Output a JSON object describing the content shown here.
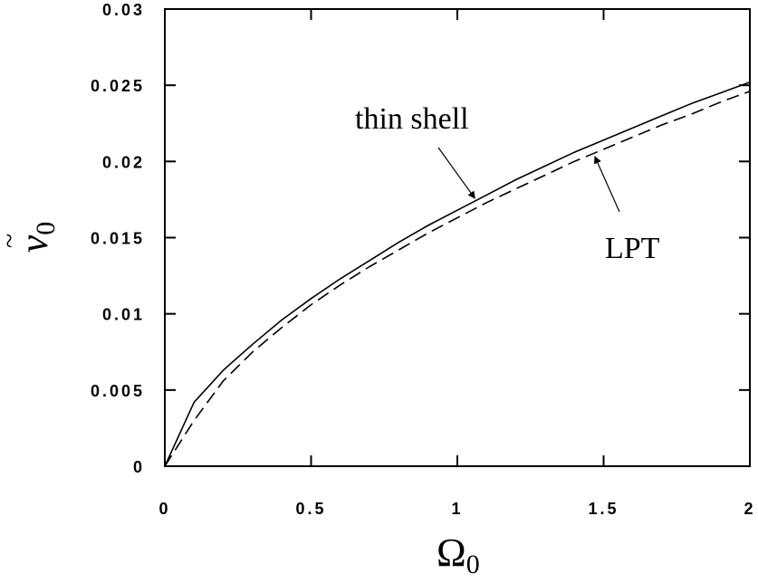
{
  "chart_data": {
    "type": "line",
    "xlabel": "Ω",
    "xlabel_sub": "0",
    "ylabel": "v",
    "ylabel_accent": "~",
    "ylabel_sub": "0",
    "xlim": [
      0,
      2
    ],
    "ylim": [
      0,
      0.03
    ],
    "x_ticks": [
      0,
      0.5,
      1,
      1.5,
      2
    ],
    "x_tick_labels": [
      "0",
      "0.5",
      "1",
      "1.5",
      "2"
    ],
    "y_ticks": [
      0,
      0.005,
      0.01,
      0.015,
      0.02,
      0.025,
      0.03
    ],
    "y_tick_labels": [
      "0",
      "0.005",
      "0.01",
      "0.015",
      "0.02",
      "0.025",
      "0.03"
    ],
    "grid": false,
    "series": [
      {
        "name": "thin shell",
        "style": "solid",
        "x": [
          0,
          0.1,
          0.2,
          0.3,
          0.4,
          0.5,
          0.6,
          0.7,
          0.8,
          0.9,
          1.0,
          1.1,
          1.2,
          1.3,
          1.4,
          1.5,
          1.6,
          1.7,
          1.8,
          1.9,
          2.0
        ],
        "y": [
          0,
          0.0042,
          0.0063,
          0.008,
          0.0096,
          0.011,
          0.0123,
          0.0135,
          0.0147,
          0.0158,
          0.0168,
          0.0178,
          0.0188,
          0.0197,
          0.0206,
          0.0214,
          0.0222,
          0.023,
          0.0238,
          0.0245,
          0.0252
        ]
      },
      {
        "name": "LPT",
        "style": "dashed",
        "x": [
          0,
          0.1,
          0.2,
          0.3,
          0.4,
          0.5,
          0.6,
          0.7,
          0.8,
          0.9,
          1.0,
          1.1,
          1.2,
          1.3,
          1.4,
          1.5,
          1.6,
          1.7,
          1.8,
          1.9,
          2.0
        ],
        "y": [
          0,
          0.003,
          0.0056,
          0.0075,
          0.0091,
          0.0106,
          0.0119,
          0.0131,
          0.0142,
          0.0153,
          0.0163,
          0.0173,
          0.0182,
          0.0191,
          0.02,
          0.0208,
          0.0216,
          0.0224,
          0.0231,
          0.0239,
          0.0246
        ]
      }
    ],
    "annotations": [
      {
        "text": "thin shell",
        "series": "thin shell",
        "arrow_to_x": 1.06
      },
      {
        "text": "LPT",
        "series": "LPT",
        "arrow_to_x": 1.47
      }
    ]
  }
}
